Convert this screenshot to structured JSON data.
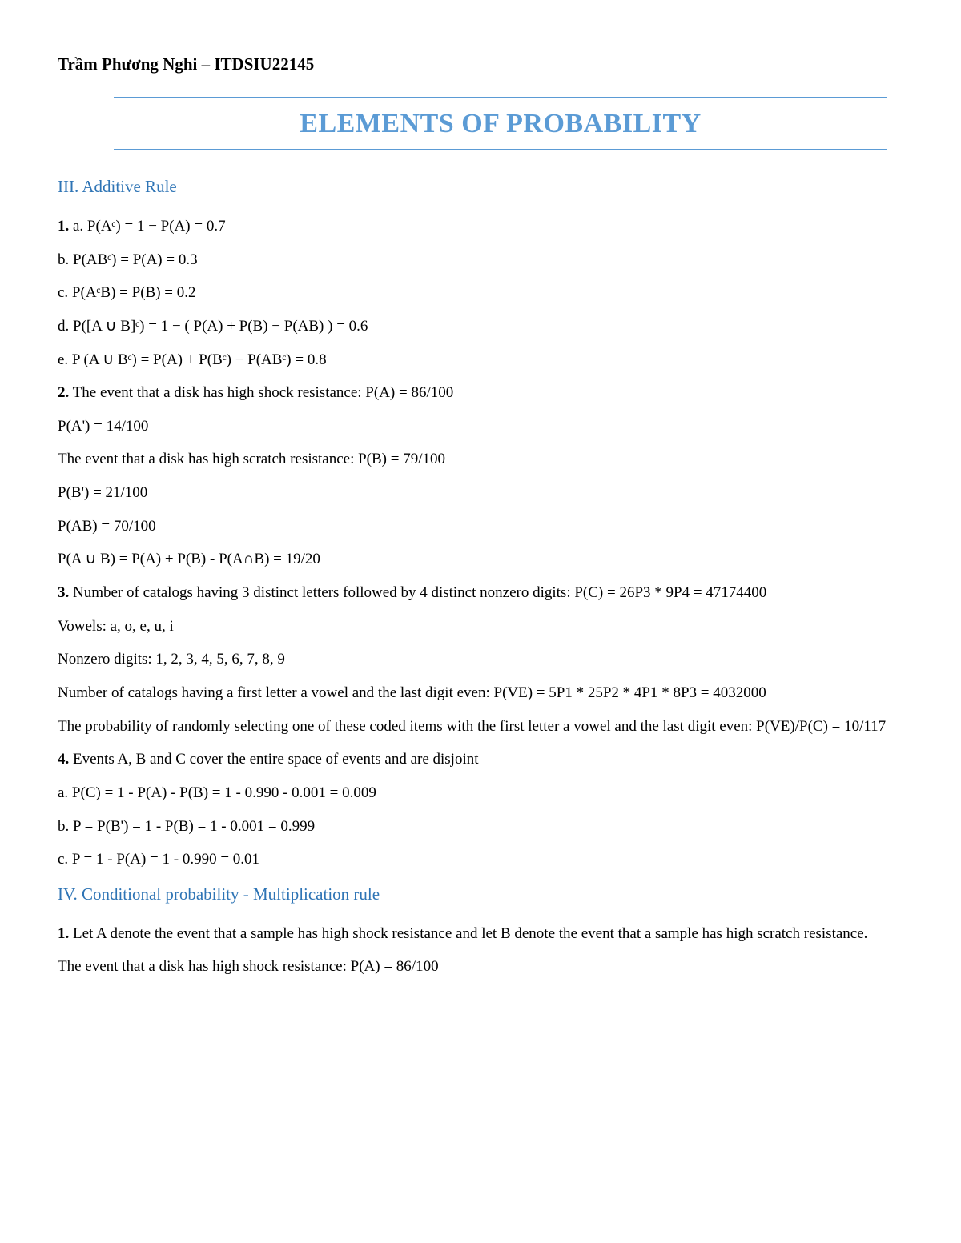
{
  "colors": {
    "rule": "#5b9bd5",
    "title": "#5b9bd5",
    "heading": "#2e74b5",
    "text": "#000000",
    "background": "#ffffff"
  },
  "typography": {
    "family": "Times New Roman",
    "header_fontsize_pt": 16,
    "title_fontsize_pt": 26,
    "heading_fontsize_pt": 16,
    "body_fontsize_pt": 14
  },
  "header": "Trầm Phương Nghi – ITDSIU22145",
  "title": "ELEMENTS OF PROBABILITY",
  "section3": {
    "heading": "III. Additive Rule",
    "lines": {
      "l1_prefix": "1.",
      "l1": " a. P(Aᶜ) = 1 − P(A) = 0.7",
      "l2": "b. P(ABᶜ) = P(A) = 0.3",
      "l3": "c. P(AᶜB) = P(B) = 0.2",
      "l4": "d. P([A ∪ B]ᶜ) = 1 − ( P(A) + P(B) − P(AB) ) = 0.6",
      "l5": "e. P (A ∪ Bᶜ) = P(A) + P(Bᶜ) − P(ABᶜ) = 0.8",
      "l6_prefix": "2.",
      "l6": " The event that a disk has high shock resistance: P(A) = 86/100",
      "l7": "P(A') = 14/100",
      "l8": "The event that a disk has high scratch resistance: P(B) = 79/100",
      "l9": "P(B') = 21/100",
      "l10": "P(AB) = 70/100",
      "l11": "P(A ∪ B) = P(A) + P(B) - P(A∩B) = 19/20",
      "l12_prefix": "3.",
      "l12": " Number of catalogs having 3 distinct letters followed by 4 distinct nonzero digits: P(C) = 26P3 * 9P4 = 47174400",
      "l13": "Vowels: a, o, e, u, i",
      "l14": "Nonzero digits: 1, 2, 3, 4, 5, 6, 7, 8, 9",
      "l15": "Number of catalogs having a first letter a vowel and the last digit even: P(VE) = 5P1 * 25P2 * 4P1 * 8P3 = 4032000",
      "l16": "The probability of randomly selecting one of these coded items with the first letter a vowel and the last digit even: P(VE)/P(C) = 10/117",
      "l17_prefix": "4.",
      "l17": " Events A, B and C cover the entire space of events and are disjoint",
      "l18": "a. P(C) = 1 - P(A) - P(B) = 1 - 0.990 - 0.001 = 0.009",
      "l19": "b. P = P(B') = 1 - P(B) = 1 - 0.001 = 0.999",
      "l20": "c. P = 1 - P(A) = 1 - 0.990 = 0.01"
    }
  },
  "section4": {
    "heading": "IV. Conditional probability - Multiplication rule",
    "lines": {
      "l1_prefix": "1.",
      "l1": " Let A denote the event that a sample has high shock resistance and let B denote the event that a sample has high scratch resistance.",
      "l2": "The event that a disk has high shock resistance: P(A) = 86/100"
    }
  }
}
